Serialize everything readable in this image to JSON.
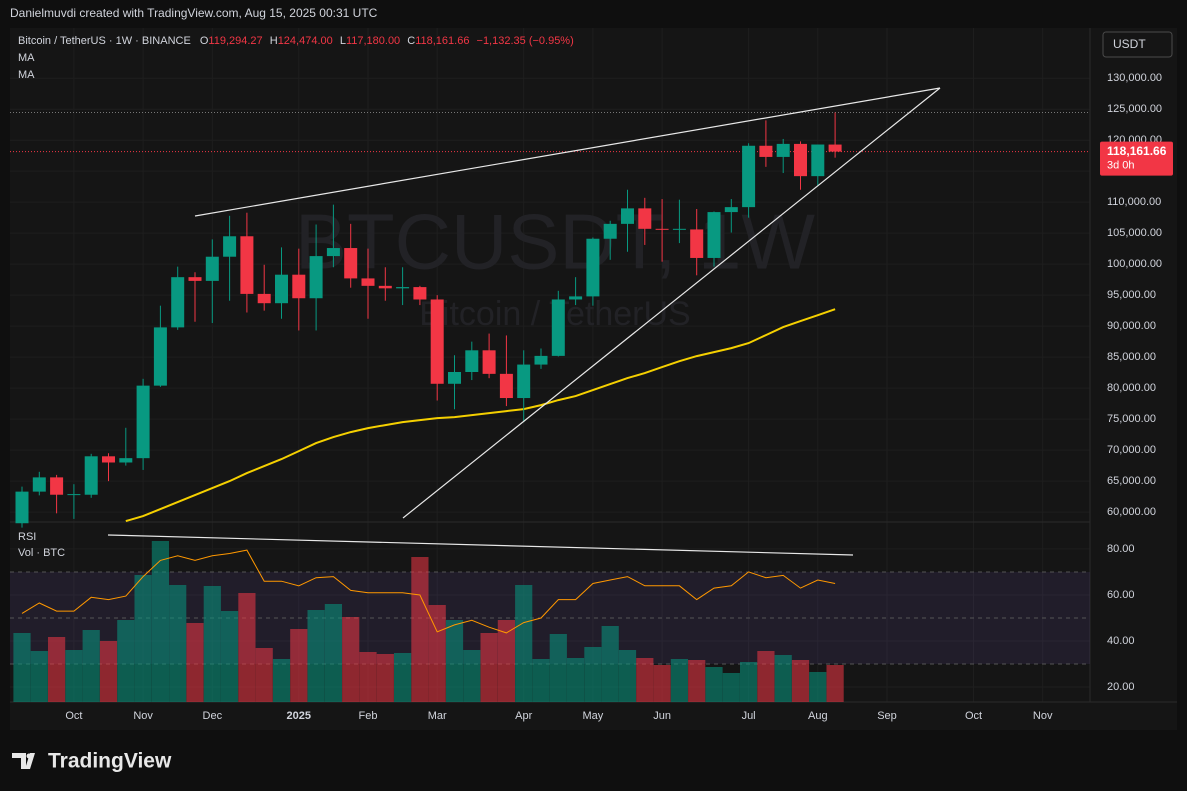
{
  "header": {
    "credit": "Danielmuvdi created with TradingView.com, Aug 15, 2025 00:31 UTC"
  },
  "footer": {
    "brand": "TradingView"
  },
  "chart_data": {
    "type": "candlestick",
    "symbol": "Bitcoin / TetherUS · 1W · BINANCE",
    "ohlc_labels": [
      {
        "key": "O",
        "text": "119,294.27"
      },
      {
        "key": "H",
        "text": "124,474.00"
      },
      {
        "key": "L",
        "text": "117,180.00"
      },
      {
        "key": "C",
        "text": "118,161.66"
      }
    ],
    "change": "−1,132.35 (−0.95%)",
    "watermark": "BTCUSDT, 1W",
    "watermark_sub": "Bitcoin / TetherUS",
    "currency": "USDT",
    "last_price_label": "118,161.66",
    "countdown": "3d 0h",
    "up_color": "#089981",
    "down_color": "#f23645",
    "categories": [
      null,
      null,
      null,
      "Oct",
      null,
      null,
      null,
      "Nov",
      null,
      null,
      null,
      "Dec",
      null,
      null,
      null,
      null,
      "2025",
      null,
      null,
      null,
      "Feb",
      null,
      null,
      null,
      "Mar",
      null,
      null,
      null,
      null,
      "Apr",
      null,
      null,
      null,
      "May",
      null,
      null,
      null,
      "Jun",
      null,
      null,
      null,
      null,
      "Jul",
      null,
      null,
      null,
      "Aug",
      null,
      null,
      null,
      "Sep",
      null,
      null,
      null,
      null,
      "Oct",
      null,
      null,
      null,
      "Nov",
      null
    ],
    "open": [
      58200,
      63300,
      65600,
      62800,
      62800,
      69000,
      68000,
      68700,
      80400,
      89800,
      97900,
      97300,
      101200,
      104500,
      95200,
      93700,
      98300,
      94500,
      101300,
      102600,
      97700,
      96500,
      96100,
      96300,
      94300,
      80700,
      82600,
      86100,
      82300,
      78400,
      83800,
      85200,
      94300,
      94800,
      104100,
      106500,
      109000,
      105700,
      105600,
      105600,
      101000,
      108400,
      109200,
      119100,
      117300,
      119400,
      114200,
      119294.27,
      null,
      null,
      null,
      null,
      null,
      null,
      null,
      null,
      null,
      null,
      null,
      null,
      null
    ],
    "high": [
      64100,
      66500,
      66000,
      64500,
      69400,
      69500,
      73600,
      81500,
      93300,
      99600,
      98700,
      104000,
      107800,
      108300,
      99900,
      102700,
      102500,
      106400,
      109600,
      106500,
      102500,
      99500,
      99500,
      96500,
      95000,
      85300,
      87500,
      88800,
      88500,
      86100,
      86400,
      95700,
      97900,
      104300,
      107000,
      112000,
      110700,
      110500,
      110400,
      108900,
      108500,
      110500,
      119500,
      123200,
      120200,
      119800,
      119300,
      124474,
      null,
      null,
      null,
      null,
      null,
      null,
      null,
      null,
      null,
      null,
      null,
      null,
      null
    ],
    "low": [
      57500,
      62700,
      59800,
      58900,
      62300,
      65000,
      67500,
      66800,
      80200,
      89400,
      90700,
      90500,
      94100,
      92200,
      92500,
      91200,
      89300,
      89300,
      99500,
      96200,
      91200,
      94100,
      93400,
      93400,
      78000,
      76600,
      81300,
      81600,
      77100,
      74500,
      83100,
      85100,
      93400,
      93300,
      100700,
      102000,
      103100,
      100400,
      103400,
      98200,
      99600,
      105100,
      107500,
      115700,
      114700,
      112000,
      112600,
      117180,
      null,
      null,
      null,
      null,
      null,
      null,
      null,
      null,
      null,
      null,
      null,
      null,
      null
    ],
    "close": [
      63300,
      65600,
      62800,
      62900,
      69000,
      68000,
      68700,
      80400,
      89800,
      97900,
      97300,
      101200,
      104500,
      95200,
      93700,
      98300,
      94500,
      101300,
      102600,
      97700,
      96500,
      96100,
      96300,
      94300,
      80700,
      82600,
      86100,
      82300,
      78400,
      83800,
      85200,
      94300,
      94800,
      104100,
      106500,
      109000,
      105700,
      105600,
      105700,
      101000,
      108400,
      109200,
      119100,
      117300,
      119400,
      114200,
      119300,
      118161.66,
      null,
      null,
      null,
      null,
      null,
      null,
      null,
      null,
      null,
      null,
      null,
      null,
      null
    ],
    "ylim": [
      58400,
      138100
    ],
    "yticks": [
      {
        "value": 60000,
        "label": "60,000.00"
      },
      {
        "value": 65000,
        "label": "65,000.00"
      },
      {
        "value": 70000,
        "label": "70,000.00"
      },
      {
        "value": 75000,
        "label": "75,000.00"
      },
      {
        "value": 80000,
        "label": "80,000.00"
      },
      {
        "value": 85000,
        "label": "85,000.00"
      },
      {
        "value": 90000,
        "label": "90,000.00"
      },
      {
        "value": 95000,
        "label": "95,000.00"
      },
      {
        "value": 100000,
        "label": "100,000.00"
      },
      {
        "value": 105000,
        "label": "105,000.00"
      },
      {
        "value": 110000,
        "label": "110,000.00"
      },
      {
        "value": 115000,
        "label": "115,000.00"
      },
      {
        "value": 120000,
        "label": "120,000.00"
      },
      {
        "value": 125000,
        "label": "125,000.00"
      },
      {
        "value": 130000,
        "label": "130,000.00"
      }
    ],
    "series": [
      {
        "name": "MA",
        "color": "#f5d000",
        "values": [
          null,
          null,
          null,
          null,
          null,
          null,
          58550,
          59350,
          60480,
          61610,
          62740,
          63870,
          65000,
          66290,
          67420,
          68550,
          69840,
          71130,
          72100,
          72900,
          73550,
          74030,
          74520,
          74840,
          75160,
          75320,
          75650,
          75970,
          76290,
          76610,
          77260,
          78060,
          78710,
          79680,
          80650,
          81610,
          82420,
          83390,
          84350,
          85160,
          85810,
          86450,
          87260,
          88550,
          89840,
          90810,
          91770,
          92740,
          null,
          null,
          null,
          null,
          null,
          null,
          null,
          null,
          null,
          null,
          null,
          null,
          null
        ]
      },
      {
        "name": "MA",
        "color": "#2962ff",
        "values": [
          null,
          null,
          null,
          null,
          null,
          null,
          null,
          null,
          null,
          null,
          null,
          null,
          null,
          null,
          null,
          null,
          null,
          null,
          null,
          null,
          null,
          null,
          null,
          null,
          null,
          null,
          null,
          null,
          null,
          null,
          null,
          null,
          null,
          null,
          null,
          null,
          null,
          null,
          null,
          null,
          null,
          null,
          null,
          null,
          null,
          null,
          null,
          null,
          null,
          null,
          null,
          null,
          null,
          null,
          null,
          null,
          null,
          null,
          null,
          null,
          null
        ]
      }
    ],
    "rsi": {
      "name": "RSI",
      "color": "#ff9800",
      "values": [
        52,
        56.5,
        53,
        53,
        59,
        58,
        59.5,
        68,
        75,
        77,
        75,
        77,
        78,
        79.5,
        66,
        66,
        64,
        67.5,
        68,
        62,
        61,
        61,
        61,
        60,
        44,
        47,
        49,
        46,
        43.5,
        48,
        50,
        58,
        58,
        65,
        66.5,
        68,
        64,
        64,
        64,
        58,
        63,
        64,
        70,
        67.5,
        68.5,
        63,
        66.5,
        65,
        null,
        null,
        null,
        null,
        null,
        null,
        null,
        null,
        null,
        null,
        null,
        null,
        null
      ]
    },
    "volume": {
      "name": "Vol · BTC",
      "values": [
        69000,
        51000,
        65000,
        52000,
        72000,
        61000,
        82000,
        127000,
        161000,
        117000,
        79000,
        116000,
        91000,
        109000,
        54000,
        43000,
        73000,
        92000,
        98000,
        85000,
        50000,
        48000,
        49000,
        145000,
        97000,
        82000,
        52000,
        69000,
        82000,
        117000,
        43000,
        68000,
        44000,
        55000,
        76000,
        52000,
        44000,
        37000,
        43000,
        42000,
        35000,
        29000,
        40000,
        51000,
        47000,
        42000,
        30000,
        37000,
        null,
        null,
        null,
        null,
        null,
        null,
        null,
        null,
        null,
        null,
        null,
        null,
        null
      ]
    },
    "y2lim": [
      13.5,
      91.7
    ],
    "y2ticks": [
      {
        "value": 20,
        "label": "20.00"
      },
      {
        "value": 40,
        "label": "40.00"
      },
      {
        "value": 60,
        "label": "60.00"
      },
      {
        "value": 80,
        "label": "80.00"
      }
    ],
    "rsi_levels": [
      70,
      50,
      30
    ],
    "grid": true
  }
}
